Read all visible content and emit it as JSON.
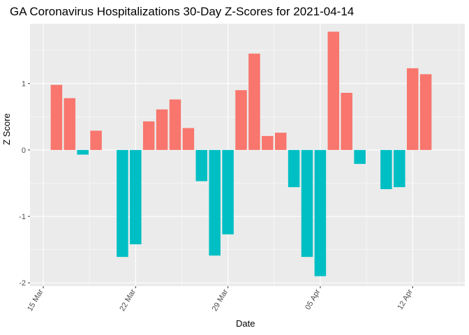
{
  "chart_data": {
    "type": "bar",
    "title": "GA Coronavirus Hospitalizations 30-Day Z-Scores for 2021-04-14",
    "xlabel": "Date",
    "ylabel": "Z Score",
    "ylim": [
      -2.05,
      1.9
    ],
    "y_ticks": [
      -2,
      -1,
      0,
      1
    ],
    "x_ticks": [
      {
        "label": "15 Mar",
        "day": 0
      },
      {
        "label": "22 Mar",
        "day": 7
      },
      {
        "label": "29 Mar",
        "day": 14
      },
      {
        "label": "05 Apr",
        "day": 21
      },
      {
        "label": "12 Apr",
        "day": 28
      }
    ],
    "x_start_date": "2021-03-15",
    "days": [
      1,
      2,
      3,
      4,
      6,
      7,
      8,
      9,
      10,
      11,
      12,
      13,
      14,
      15,
      16,
      17,
      18,
      19,
      20,
      21,
      22,
      23,
      24,
      26,
      27,
      28,
      29,
      30
    ],
    "values": [
      0.98,
      0.78,
      -0.07,
      0.29,
      -1.61,
      -1.42,
      0.43,
      0.61,
      0.76,
      0.33,
      -0.47,
      -1.59,
      -1.27,
      0.9,
      1.45,
      0.21,
      0.26,
      -0.56,
      -1.61,
      -1.9,
      1.78,
      0.86,
      -0.21,
      -0.59,
      -0.56,
      1.23,
      1.14,
      0
    ],
    "colors": {
      "positive": "#F8766D",
      "negative": "#00BFC4",
      "panel": "#EBEBEB",
      "grid": "#FFFFFF"
    }
  }
}
